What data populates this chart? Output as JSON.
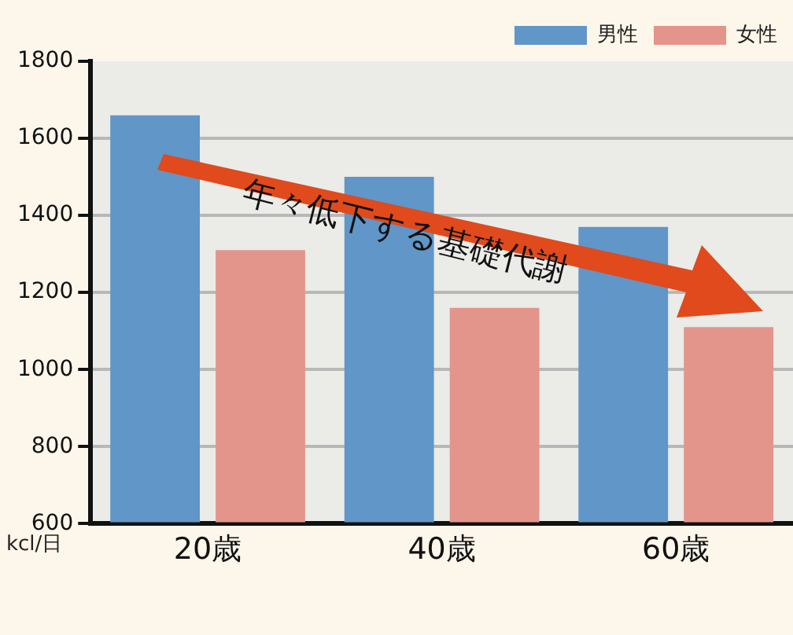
{
  "chart_data": {
    "type": "bar",
    "ylabel": "kcl/日",
    "categories": [
      "20歳",
      "40歳",
      "60歳"
    ],
    "series": [
      {
        "name": "男性",
        "color": "#6096c8",
        "values": [
          1660,
          1500,
          1370
        ]
      },
      {
        "name": "女性",
        "color": "#e3958c",
        "values": [
          1310,
          1160,
          1110
        ]
      }
    ],
    "ylim": [
      600,
      1800
    ],
    "yticks": [
      600,
      800,
      1000,
      1200,
      1400,
      1600,
      1800
    ],
    "grid": "y",
    "legend": "top right",
    "annotations": [
      "年々低下する基礎代謝"
    ]
  }
}
